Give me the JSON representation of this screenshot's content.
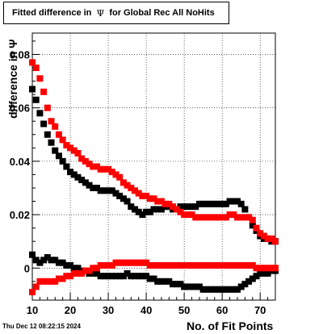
{
  "title": {
    "prefix": "Fitted difference in",
    "symbol": "Ψ",
    "suffix": "for Global Rec All NoHits"
  },
  "timestamp": "Thu Dec 12 08:22:15 2024",
  "chart_data": {
    "type": "scatter",
    "xlabel": "No. of Fit Points",
    "ylabel": "difference in Ψ",
    "xlim": [
      10,
      74
    ],
    "ylim": [
      -0.012,
      0.088
    ],
    "xticks": [
      10,
      20,
      30,
      40,
      50,
      60,
      70
    ],
    "yticks": [
      0,
      0.02,
      0.04,
      0.06,
      0.08
    ],
    "ytick_labels": [
      "0",
      "0.02",
      "0.04",
      "0.06",
      "0.08"
    ],
    "grid": true,
    "series": [
      {
        "color": "#000000",
        "x": [
          10,
          11,
          12,
          13,
          14,
          15,
          16,
          17,
          18,
          19,
          20,
          21,
          22,
          23,
          24,
          25,
          26,
          27,
          28,
          29,
          30,
          31,
          32,
          33,
          34,
          35,
          36,
          37,
          38,
          39,
          40,
          41,
          42,
          43,
          44,
          45,
          46,
          47,
          48,
          49,
          50,
          51,
          52,
          53,
          54,
          55,
          56,
          57,
          58,
          59,
          60,
          61,
          62,
          63,
          64,
          65,
          66,
          67,
          68,
          69,
          70,
          71,
          72,
          73,
          74
        ],
        "values": [
          0.067,
          0.063,
          0.058,
          0.054,
          0.05,
          0.047,
          0.044,
          0.042,
          0.04,
          0.038,
          0.036,
          0.035,
          0.034,
          0.033,
          0.032,
          0.031,
          0.03,
          0.03,
          0.029,
          0.029,
          0.029,
          0.029,
          0.028,
          0.027,
          0.026,
          0.025,
          0.023,
          0.022,
          0.021,
          0.02,
          0.021,
          0.021,
          0.022,
          0.022,
          0.022,
          0.023,
          0.023,
          0.022,
          0.022,
          0.023,
          0.023,
          0.023,
          0.023,
          0.023,
          0.024,
          0.024,
          0.024,
          0.024,
          0.024,
          0.024,
          0.024,
          0.024,
          0.025,
          0.025,
          0.025,
          0.024,
          0.022,
          0.019,
          0.016,
          0.014,
          0.012,
          0.011,
          0.011,
          0.01,
          0.01
        ]
      },
      {
        "color": "#ff0000",
        "x": [
          10,
          11,
          12,
          13,
          14,
          15,
          16,
          17,
          18,
          19,
          20,
          21,
          22,
          23,
          24,
          25,
          26,
          27,
          28,
          29,
          30,
          31,
          32,
          33,
          34,
          35,
          36,
          37,
          38,
          39,
          40,
          41,
          42,
          43,
          44,
          45,
          46,
          47,
          48,
          49,
          50,
          51,
          52,
          53,
          54,
          55,
          56,
          57,
          58,
          59,
          60,
          61,
          62,
          63,
          64,
          65,
          66,
          67,
          68,
          69,
          70,
          71,
          72,
          73,
          74
        ],
        "values": [
          0.077,
          0.075,
          0.071,
          0.066,
          0.06,
          0.055,
          0.053,
          0.05,
          0.048,
          0.046,
          0.045,
          0.044,
          0.043,
          0.041,
          0.04,
          0.039,
          0.038,
          0.038,
          0.037,
          0.037,
          0.037,
          0.036,
          0.035,
          0.034,
          0.032,
          0.031,
          0.03,
          0.029,
          0.028,
          0.027,
          0.027,
          0.026,
          0.026,
          0.025,
          0.025,
          0.024,
          0.024,
          0.023,
          0.022,
          0.021,
          0.02,
          0.02,
          0.02,
          0.019,
          0.019,
          0.019,
          0.019,
          0.019,
          0.019,
          0.019,
          0.019,
          0.019,
          0.02,
          0.02,
          0.019,
          0.019,
          0.019,
          0.019,
          0.018,
          0.015,
          0.013,
          0.012,
          0.011,
          0.011,
          0.01
        ]
      },
      {
        "color": "#000000",
        "x": [
          10,
          11,
          12,
          13,
          14,
          15,
          16,
          17,
          18,
          19,
          20,
          21,
          22,
          23,
          24,
          25,
          26,
          27,
          28,
          29,
          30,
          31,
          32,
          33,
          34,
          35,
          36,
          37,
          38,
          39,
          40,
          41,
          42,
          43,
          44,
          45,
          46,
          47,
          48,
          49,
          50,
          51,
          52,
          53,
          54,
          55,
          56,
          57,
          58,
          59,
          60,
          61,
          62,
          63,
          64,
          65,
          66,
          67,
          68,
          69,
          70,
          71,
          72,
          73,
          74
        ],
        "values": [
          0.005,
          0.003,
          0.002,
          0.003,
          0.004,
          0.003,
          0.003,
          0.002,
          0.002,
          0.001,
          0.001,
          0.0,
          0.0,
          -0.001,
          -0.001,
          -0.002,
          -0.002,
          -0.002,
          -0.003,
          -0.003,
          -0.003,
          -0.003,
          -0.003,
          -0.003,
          -0.003,
          -0.002,
          -0.003,
          -0.003,
          -0.003,
          -0.003,
          -0.003,
          -0.004,
          -0.004,
          -0.005,
          -0.005,
          -0.005,
          -0.005,
          -0.006,
          -0.006,
          -0.006,
          -0.007,
          -0.007,
          -0.007,
          -0.007,
          -0.007,
          -0.008,
          -0.008,
          -0.008,
          -0.008,
          -0.008,
          -0.008,
          -0.008,
          -0.008,
          -0.008,
          -0.008,
          -0.007,
          -0.006,
          -0.005,
          -0.004,
          -0.003,
          -0.002,
          -0.002,
          -0.002,
          -0.001,
          -0.001
        ]
      },
      {
        "color": "#ff0000",
        "x": [
          10,
          11,
          12,
          13,
          14,
          15,
          16,
          17,
          18,
          19,
          20,
          21,
          22,
          23,
          24,
          25,
          26,
          27,
          28,
          29,
          30,
          31,
          32,
          33,
          34,
          35,
          36,
          37,
          38,
          39,
          40,
          41,
          42,
          43,
          44,
          45,
          46,
          47,
          48,
          49,
          50,
          51,
          52,
          53,
          54,
          55,
          56,
          57,
          58,
          59,
          60,
          61,
          62,
          63,
          64,
          65,
          66,
          67,
          68,
          69,
          70,
          71,
          72,
          73,
          74
        ],
        "values": [
          -0.009,
          -0.007,
          -0.005,
          -0.005,
          -0.005,
          -0.005,
          -0.005,
          -0.004,
          -0.004,
          -0.003,
          -0.003,
          -0.002,
          -0.002,
          -0.002,
          -0.001,
          -0.001,
          0.0,
          0.0,
          0.001,
          0.001,
          0.001,
          0.001,
          0.002,
          0.002,
          0.002,
          0.002,
          0.002,
          0.002,
          0.002,
          0.002,
          0.002,
          0.001,
          0.001,
          0.001,
          0.001,
          0.001,
          0.001,
          0.001,
          0.001,
          0.001,
          0.001,
          0.001,
          0.001,
          0.001,
          0.001,
          0.001,
          0.001,
          0.001,
          0.001,
          0.001,
          0.001,
          0.001,
          0.001,
          0.001,
          0.001,
          0.001,
          0.001,
          0.001,
          0.001,
          0.0,
          0.0,
          0.0,
          0.0,
          0.0,
          0.0
        ]
      }
    ]
  }
}
